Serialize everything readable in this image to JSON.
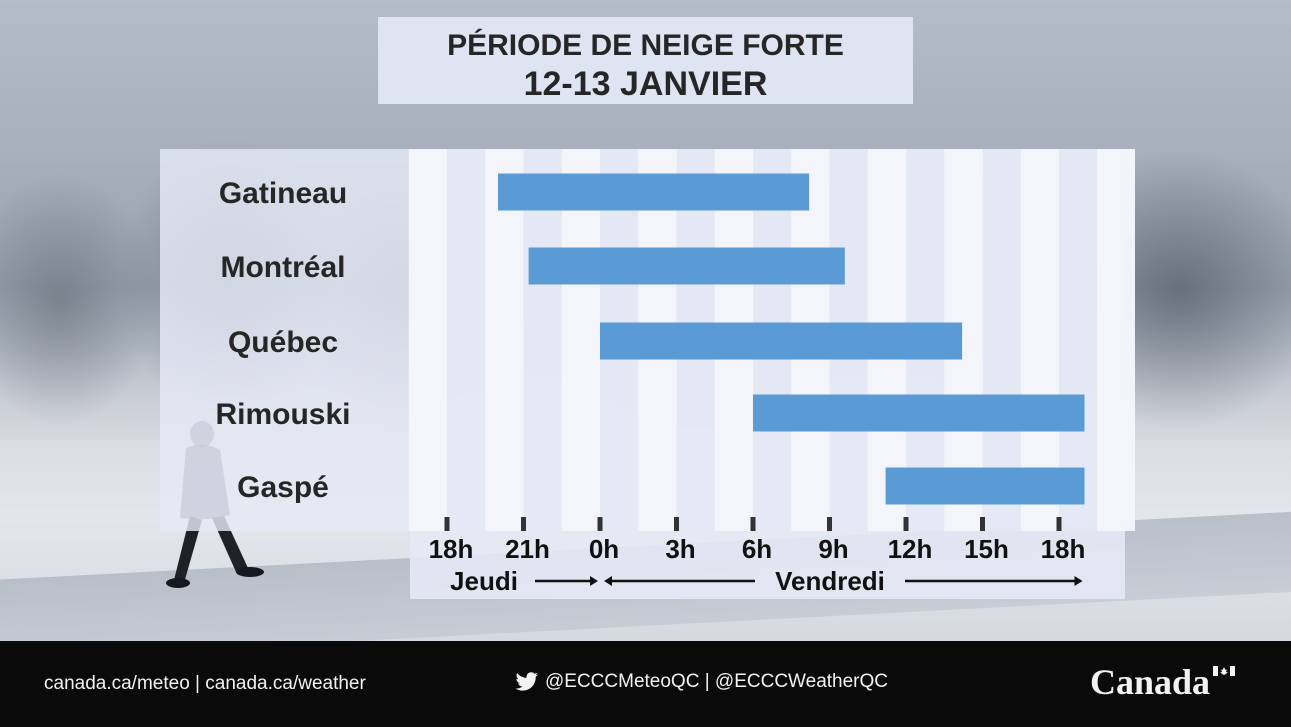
{
  "title": {
    "line1": "PÉRIODE DE NEIGE FORTE",
    "line2": "12-13 JANVIER"
  },
  "chart_data": {
    "type": "gantt",
    "categories": [
      "Gatineau",
      "Montréal",
      "Québec",
      "Rimouski",
      "Gaspé"
    ],
    "x_tick_labels": [
      "18h",
      "21h",
      "0h",
      "3h",
      "6h",
      "9h",
      "12h",
      "15h",
      "18h"
    ],
    "x_tick_hours": [
      0,
      3,
      6,
      9,
      12,
      15,
      18,
      21,
      24
    ],
    "xlim_hours": [
      -1.5,
      26
    ],
    "series": [
      {
        "values": [
          {
            "location": "Gatineau",
            "start_hour": 2,
            "end_hour": 14.2
          },
          {
            "location": "Montréal",
            "start_hour": 3.2,
            "end_hour": 15.6
          },
          {
            "location": "Québec",
            "start_hour": 6,
            "end_hour": 20.2
          },
          {
            "location": "Rimouski",
            "start_hour": 12,
            "end_hour": 25
          },
          {
            "location": "Gaspé",
            "start_hour": 17.2,
            "end_hour": 25
          }
        ]
      }
    ],
    "day_labels": [
      {
        "label": "Jeudi",
        "start_hour": 0,
        "end_hour": 6
      },
      {
        "label": "Vendredi",
        "start_hour": 6,
        "end_hour": 25
      }
    ],
    "bar_color": "#5b9bd5"
  },
  "footer": {
    "links": "canada.ca/meteo | canada.ca/weather",
    "social": "@ECCCMeteoQC | @ECCCWeatherQC",
    "brand": "Canada"
  },
  "colors": {
    "panel": "#e4e9f5",
    "stripe": "#f3f5fb",
    "text": "#262626",
    "footer_bg": "#0a0a0a"
  },
  "icons": [
    "twitter-bird-icon",
    "canada-flag-icon"
  ]
}
